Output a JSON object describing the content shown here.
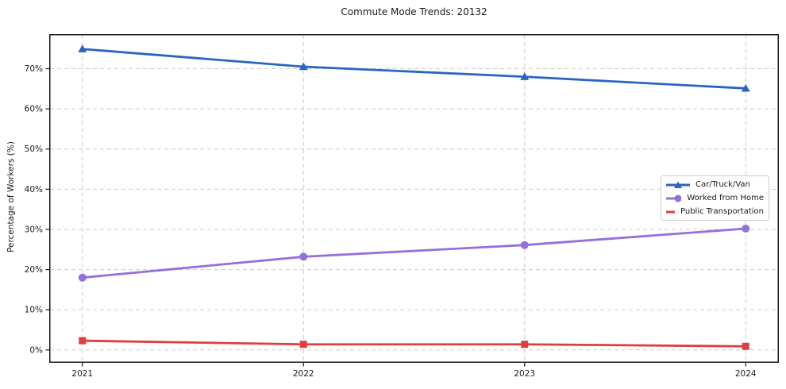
{
  "chart_data": {
    "type": "line",
    "title": "Commute Mode Trends: 20132",
    "xlabel": "",
    "ylabel": "Percentage of Workers (%)",
    "x": [
      2021,
      2022,
      2023,
      2024
    ],
    "x_tick_labels": [
      "2021",
      "2022",
      "2023",
      "2024"
    ],
    "yticks": [
      0,
      10,
      20,
      30,
      40,
      50,
      60,
      70
    ],
    "y_tick_labels": [
      "0%",
      "10%",
      "20%",
      "30%",
      "40%",
      "50%",
      "60%",
      "70%"
    ],
    "xlim": [
      2020.85,
      2024.15
    ],
    "ylim": [
      -3.2,
      78.6
    ],
    "grid": true,
    "grid_style": "dashed",
    "legend_position": "center right",
    "series": [
      {
        "name": "Car/Truck/Van",
        "marker": "triangle",
        "color": "#2a65c2",
        "values": [
          74.9,
          70.5,
          68.0,
          65.1
        ]
      },
      {
        "name": "Worked from Home",
        "marker": "circle",
        "color": "#9370db",
        "values": [
          18.0,
          23.2,
          26.1,
          30.2
        ]
      },
      {
        "name": "Public Transportation",
        "marker": "square",
        "color": "#e03e3e",
        "values": [
          2.3,
          1.4,
          1.4,
          0.9
        ]
      }
    ],
    "colors": {
      "grid": "#cccccc",
      "spine": "#1a1a1a",
      "text": "#1a1a1a",
      "background": "#ffffff"
    }
  }
}
